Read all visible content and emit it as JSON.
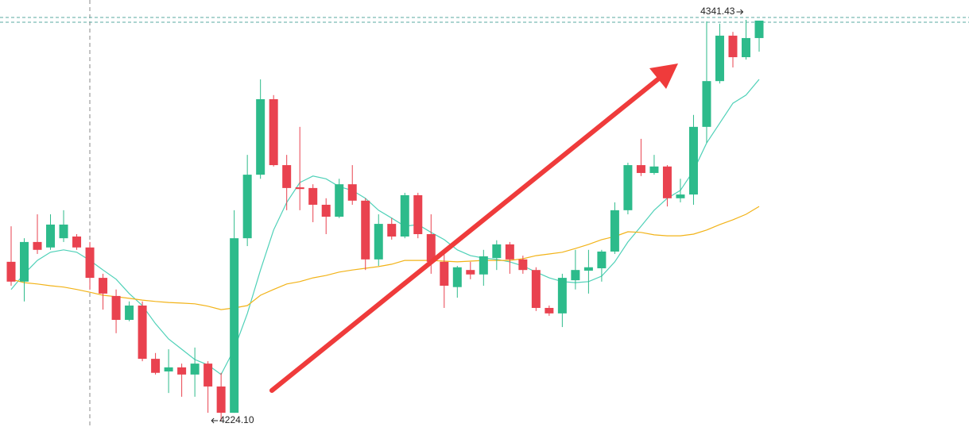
{
  "chart_data": {
    "type": "candlestick",
    "up_color": "#2dbb8b",
    "down_color": "#e9424f",
    "high_mark": 4341.43,
    "low_mark": {
      "value": 4224.1,
      "label": "4224.10"
    },
    "open": [
      4270.6,
      4264.8,
      4276.4,
      4274.8,
      4277.5,
      4278.0,
      4274.8,
      4265.9,
      4260.6,
      4253.6,
      4257.8,
      4242.2,
      4238.5,
      4239.7,
      4237.6,
      4240.8,
      4234.1,
      4226.4,
      4277.5,
      4296.1,
      4318.2,
      4298.9,
      4292.4,
      4292.2,
      4287.3,
      4283.8,
      4293.3,
      4288.5,
      4271.3,
      4281.7,
      4278.0,
      4290.1,
      4278.7,
      4270.6,
      4263.2,
      4268.2,
      4266.9,
      4271.7,
      4275.7,
      4271.3,
      4268.2,
      4257.1,
      4255.5,
      4265.2,
      4268.0,
      4268.7,
      4273.6,
      4285.7,
      4298.9,
      4296.6,
      4298.5,
      4289.2,
      4290.3,
      4310.1,
      4323.5,
      4336.8,
      4330.5,
      4336.1
    ],
    "high": [
      4281.0,
      4277.5,
      4284.5,
      4284.5,
      4285.7,
      4278.7,
      4276.4,
      4267.1,
      4262.5,
      4259.0,
      4259.0,
      4243.9,
      4245.0,
      4240.8,
      4245.5,
      4241.5,
      4238.1,
      4285.7,
      4301.9,
      4324.0,
      4319.4,
      4301.9,
      4310.1,
      4293.3,
      4289.2,
      4294.9,
      4298.9,
      4289.2,
      4284.5,
      4283.4,
      4290.8,
      4290.8,
      4284.5,
      4272.9,
      4269.4,
      4270.6,
      4274.1,
      4276.9,
      4276.4,
      4272.4,
      4269.0,
      4257.8,
      4267.1,
      4274.1,
      4274.1,
      4274.1,
      4288.0,
      4299.6,
      4306.6,
      4301.9,
      4298.9,
      4294.9,
      4313.6,
      4341.0,
      4340.3,
      4337.9,
      4341.43,
      4341.2
    ],
    "low": [
      4263.6,
      4259.0,
      4272.9,
      4274.1,
      4276.4,
      4274.1,
      4262.5,
      4256.6,
      4249.7,
      4253.2,
      4241.5,
      4237.6,
      4232.2,
      4231.1,
      4231.1,
      4226.4,
      4224.1,
      4226.4,
      4275.2,
      4294.9,
      4298.5,
      4285.7,
      4285.7,
      4282.2,
      4278.7,
      4283.4,
      4287.3,
      4268.2,
      4269.4,
      4277.1,
      4277.5,
      4277.5,
      4267.1,
      4257.1,
      4260.1,
      4265.5,
      4263.6,
      4268.2,
      4267.1,
      4267.1,
      4256.2,
      4254.8,
      4251.5,
      4262.5,
      4261.3,
      4264.8,
      4272.9,
      4284.5,
      4295.7,
      4296.1,
      4286.8,
      4288.0,
      4287.3,
      4305.4,
      4322.8,
      4327.5,
      4329.8,
      4332.1
    ],
    "close": [
      4264.8,
      4276.4,
      4274.1,
      4281.5,
      4281.5,
      4274.8,
      4265.9,
      4261.3,
      4253.6,
      4257.8,
      4242.2,
      4238.1,
      4239.7,
      4237.6,
      4240.8,
      4234.1,
      4226.4,
      4277.5,
      4296.1,
      4318.2,
      4298.9,
      4292.2,
      4291.9,
      4287.3,
      4283.8,
      4293.3,
      4288.5,
      4271.3,
      4281.7,
      4278.0,
      4290.1,
      4278.7,
      4270.6,
      4263.6,
      4269.0,
      4266.9,
      4272.2,
      4275.7,
      4271.3,
      4268.2,
      4257.1,
      4255.5,
      4265.9,
      4268.2,
      4269.0,
      4273.6,
      4285.7,
      4298.9,
      4296.6,
      4298.5,
      4289.2,
      4290.3,
      4310.1,
      4323.5,
      4336.8,
      4330.5,
      4336.1,
      4341.2
    ],
    "lines": [
      {
        "color": "#4fd1b8",
        "values": [
          4262.5,
          4267.1,
          4271.0,
          4273.4,
          4274.1,
          4273.4,
          4271.0,
          4268.2,
          4265.5,
          4261.3,
          4257.8,
          4252.5,
          4248.0,
          4245.0,
          4242.0,
          4240.4,
          4237.6,
          4245.0,
          4255.5,
          4268.2,
          4279.9,
          4288.0,
          4293.8,
          4295.7,
          4294.9,
          4292.6,
          4291.5,
          4289.2,
          4285.7,
          4283.4,
          4281.0,
          4281.5,
          4279.2,
          4277.1,
          4274.1,
          4272.4,
          4271.7,
          4271.3,
          4270.6,
          4269.4,
          4267.6,
          4265.9,
          4264.8,
          4264.5,
          4264.8,
          4266.4,
          4270.6,
          4276.4,
          4281.0,
          4285.7,
          4289.2,
          4291.5,
          4297.3,
          4305.4,
          4311.2,
          4317.0,
          4319.4,
          4324.0
        ]
      },
      {
        "color": "#f2b318",
        "values": [
          4265.5,
          4264.5,
          4264.1,
          4263.6,
          4263.2,
          4262.5,
          4261.7,
          4260.8,
          4260.4,
          4259.9,
          4259.4,
          4259.0,
          4258.7,
          4258.5,
          4258.3,
          4257.6,
          4256.6,
          4257.1,
          4257.8,
          4260.8,
          4262.5,
          4264.1,
          4264.8,
          4265.9,
          4266.6,
          4267.6,
          4268.2,
          4268.7,
          4269.2,
          4269.9,
          4271.0,
          4271.0,
          4271.0,
          4270.8,
          4270.6,
          4270.8,
          4271.0,
          4271.0,
          4271.0,
          4271.5,
          4272.4,
          4272.9,
          4273.4,
          4274.5,
          4275.7,
          4277.1,
          4278.0,
          4279.4,
          4279.2,
          4278.5,
          4278.2,
          4278.2,
          4278.7,
          4279.9,
          4281.5,
          4282.9,
          4284.5,
          4286.8
        ]
      }
    ]
  }
}
